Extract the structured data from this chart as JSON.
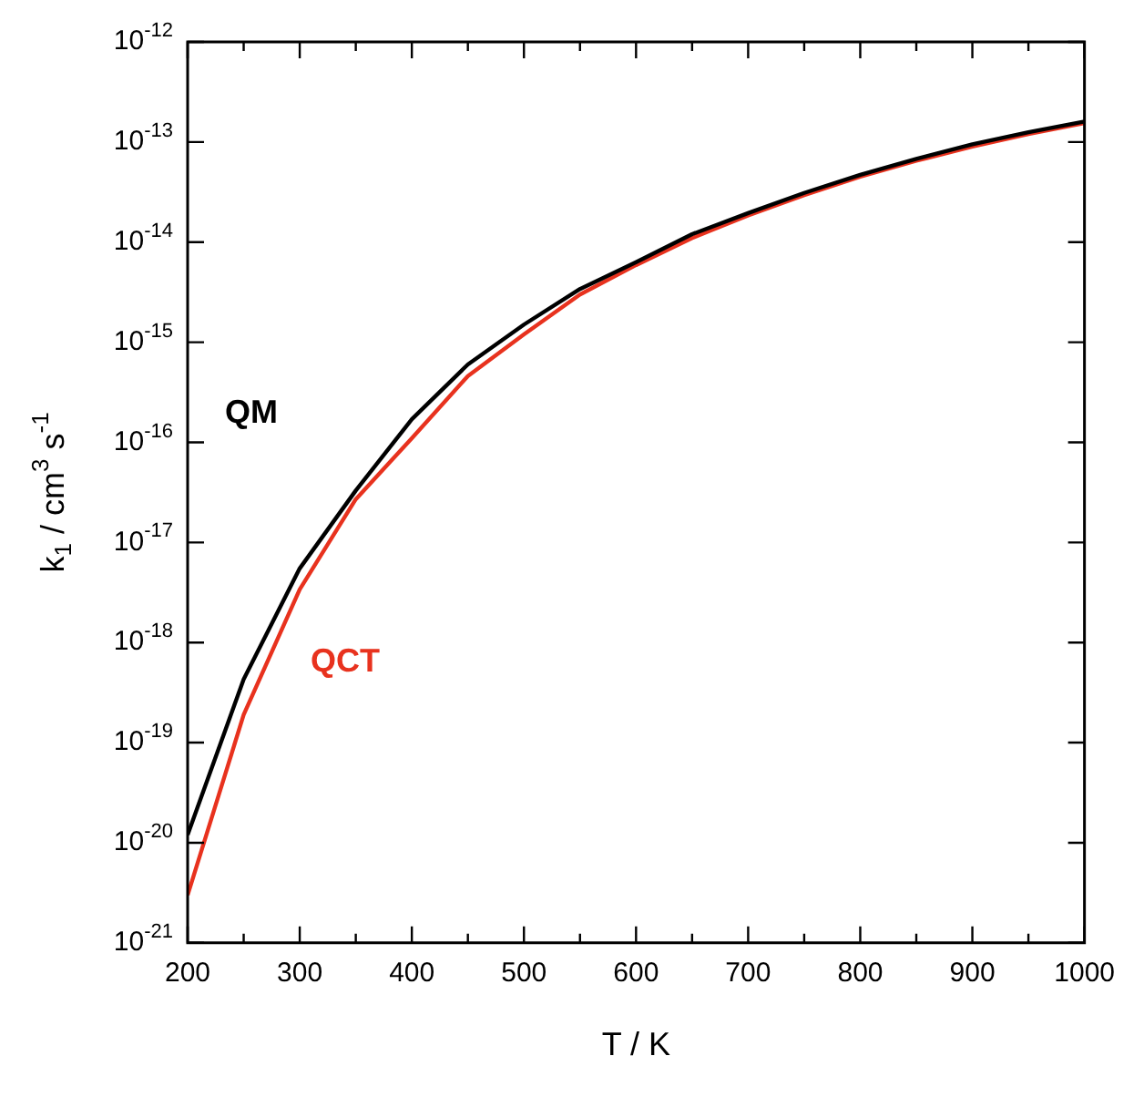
{
  "chart_data": {
    "type": "line",
    "xlabel": "T / K",
    "ylabel": "k$_{1}$ / cm$^{3}$ s$^{-1}$",
    "log": true,
    "legend": false,
    "grid": false,
    "x": [
      200,
      250,
      300,
      350,
      400,
      450,
      500,
      550,
      600,
      650,
      700,
      750,
      800,
      850,
      900,
      950,
      1000
    ],
    "series": [
      {
        "name": "QM",
        "color": "#000000",
        "values": [
          1.2e-20,
          4.3e-19,
          5.5e-18,
          3.3e-17,
          1.7e-16,
          6e-16,
          1.5e-15,
          3.4e-15,
          6.3e-15,
          1.2e-14,
          1.95e-14,
          3.1e-14,
          4.7e-14,
          6.8e-14,
          9.5e-14,
          1.25e-13,
          1.6e-13
        ]
      },
      {
        "name": "QCT",
        "color": "#e8321e",
        "values": [
          3e-21,
          1.9e-19,
          3.4e-18,
          2.7e-17,
          1.1e-16,
          4.6e-16,
          1.2e-15,
          3e-15,
          5.9e-15,
          1.1e-14,
          1.85e-14,
          2.95e-14,
          4.5e-14,
          6.5e-14,
          9e-14,
          1.2e-13,
          1.55e-13
        ]
      }
    ],
    "xlim": [
      200,
      1000
    ],
    "xticks": [
      200,
      {
        "value": 250,
        "label": null
      },
      300,
      {
        "value": 350,
        "label": null
      },
      400,
      {
        "value": 450,
        "label": null
      },
      500,
      {
        "value": 550,
        "label": null
      },
      600,
      {
        "value": 650,
        "label": null
      },
      700,
      {
        "value": 750,
        "label": null
      },
      800,
      {
        "value": 850,
        "label": null
      },
      900,
      {
        "value": 950,
        "label": null
      },
      1000
    ],
    "ylim": [
      1e-21,
      1e-12
    ],
    "yticks": [
      {
        "value": 1e-21,
        "label": "10$^{-21}$"
      },
      {
        "value": 1e-20,
        "label": "10$^{-20}$"
      },
      {
        "value": 1e-19,
        "label": "10$^{-19}$"
      },
      {
        "value": 1e-18,
        "label": "10$^{-18}$"
      },
      {
        "value": 1e-17,
        "label": "10$^{-17}$"
      },
      {
        "value": 1e-16,
        "label": "10$^{-16}$"
      },
      {
        "value": 1e-15,
        "label": "10$^{-15}$"
      },
      {
        "value": 1e-14,
        "label": "10$^{-14}$"
      },
      {
        "value": 1e-13,
        "label": "10$^{-13}$"
      },
      {
        "value": 1e-12,
        "label": "10$^{-12}$"
      }
    ]
  }
}
